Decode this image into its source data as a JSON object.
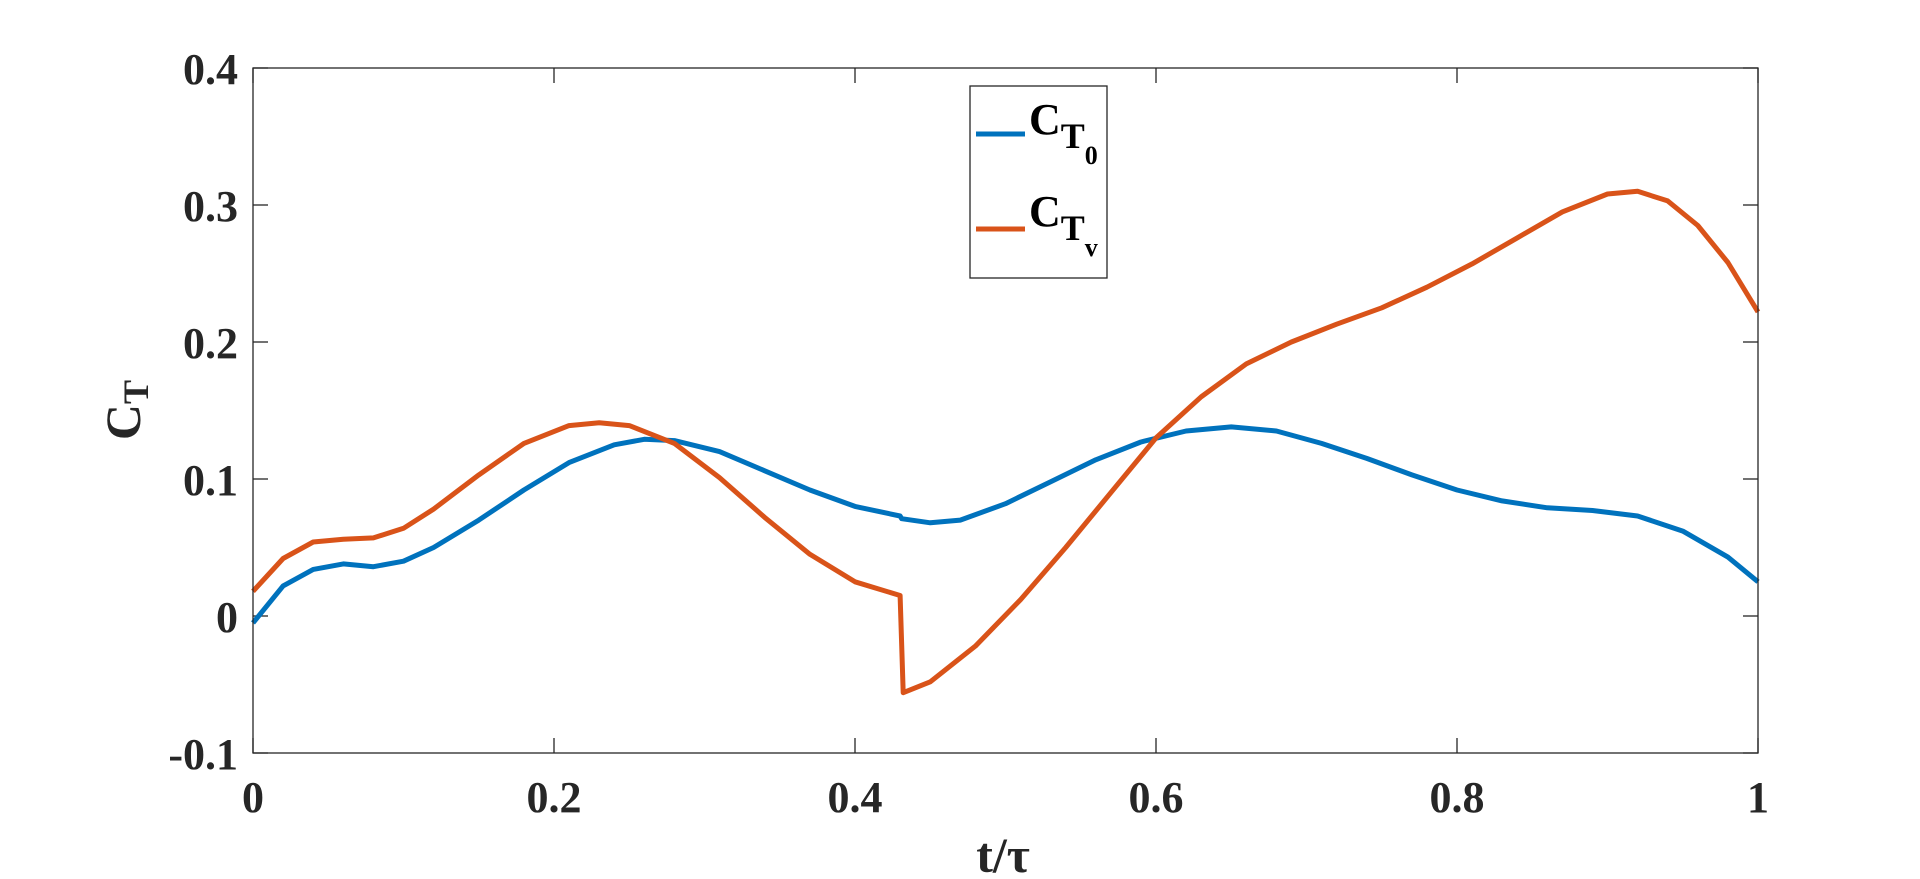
{
  "chart_data": {
    "type": "line",
    "xlabel": "t/τ",
    "ylabel": "C_T",
    "ylabel_main": "C",
    "ylabel_sub": "T",
    "xlim": [
      0,
      1
    ],
    "ylim": [
      -0.1,
      0.4
    ],
    "xticks": [
      "0",
      "0.2",
      "0.4",
      "0.6",
      "0.8",
      "1"
    ],
    "yticks": [
      "-0.1",
      "0",
      "0.1",
      "0.2",
      "0.3",
      "0.4"
    ],
    "grid": false,
    "legend_position": "top-center",
    "series": [
      {
        "name": "C_T0",
        "label_main": "C",
        "label_sub": "T",
        "label_subsub": "0",
        "color": "#0072BD",
        "x": [
          0,
          0.02,
          0.04,
          0.06,
          0.08,
          0.1,
          0.12,
          0.15,
          0.18,
          0.21,
          0.24,
          0.26,
          0.28,
          0.31,
          0.34,
          0.37,
          0.4,
          0.43,
          0.431,
          0.45,
          0.47,
          0.5,
          0.53,
          0.56,
          0.59,
          0.62,
          0.65,
          0.68,
          0.71,
          0.74,
          0.77,
          0.8,
          0.83,
          0.86,
          0.89,
          0.92,
          0.95,
          0.98,
          1.0
        ],
        "y": [
          -0.005,
          0.022,
          0.034,
          0.038,
          0.036,
          0.04,
          0.05,
          0.07,
          0.092,
          0.112,
          0.125,
          0.129,
          0.128,
          0.12,
          0.106,
          0.092,
          0.08,
          0.073,
          0.071,
          0.068,
          0.07,
          0.082,
          0.098,
          0.114,
          0.127,
          0.135,
          0.138,
          0.135,
          0.126,
          0.115,
          0.103,
          0.092,
          0.084,
          0.079,
          0.077,
          0.073,
          0.062,
          0.043,
          0.025
        ]
      },
      {
        "name": "C_Tv",
        "label_main": "C",
        "label_sub": "T",
        "label_subsub": "v",
        "color": "#D95319",
        "x": [
          0,
          0.02,
          0.04,
          0.06,
          0.08,
          0.1,
          0.12,
          0.15,
          0.18,
          0.21,
          0.23,
          0.25,
          0.28,
          0.31,
          0.34,
          0.37,
          0.4,
          0.43,
          0.432,
          0.45,
          0.48,
          0.51,
          0.54,
          0.57,
          0.6,
          0.63,
          0.66,
          0.69,
          0.72,
          0.75,
          0.78,
          0.81,
          0.84,
          0.87,
          0.9,
          0.92,
          0.94,
          0.96,
          0.98,
          1.0
        ],
        "y": [
          0.018,
          0.042,
          0.054,
          0.056,
          0.057,
          0.064,
          0.078,
          0.103,
          0.126,
          0.139,
          0.141,
          0.139,
          0.126,
          0.101,
          0.072,
          0.045,
          0.025,
          0.015,
          -0.056,
          -0.048,
          -0.022,
          0.012,
          0.05,
          0.09,
          0.13,
          0.16,
          0.184,
          0.2,
          0.213,
          0.225,
          0.24,
          0.257,
          0.276,
          0.295,
          0.308,
          0.31,
          0.303,
          0.285,
          0.258,
          0.222
        ]
      }
    ]
  }
}
